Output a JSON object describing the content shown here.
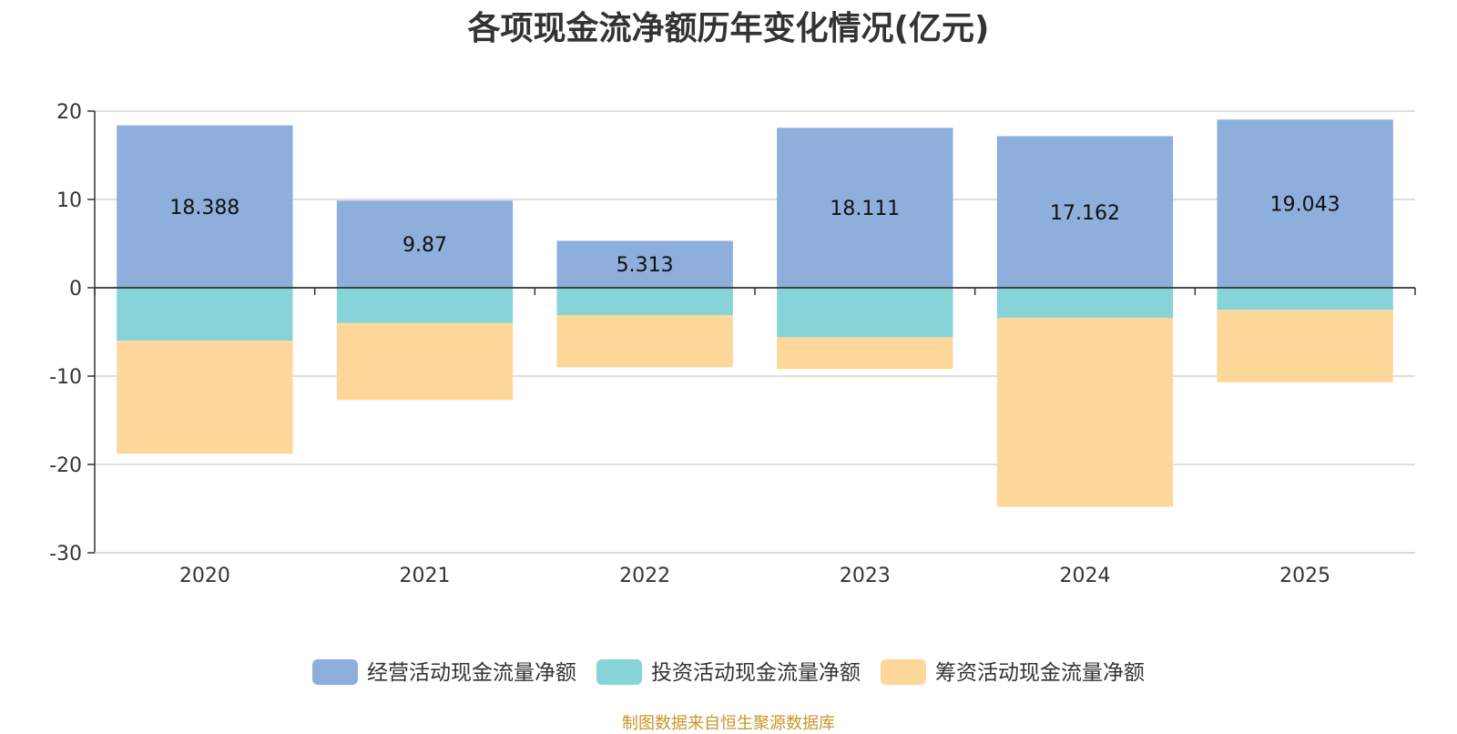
{
  "chart_data": {
    "type": "bar",
    "stacked": true,
    "title": "各项现金流净额历年变化情况(亿元)",
    "categories": [
      "2020",
      "2021",
      "2022",
      "2023",
      "2024",
      "2025"
    ],
    "ylim": [
      -30,
      20
    ],
    "yticks": [
      20,
      10,
      0,
      -10,
      -20,
      -30
    ],
    "grid": true,
    "legend_position": "bottom",
    "series": [
      {
        "name": "经营活动现金流量净额",
        "color": "#8eaedb",
        "values": [
          18.388,
          9.87,
          5.313,
          18.111,
          17.162,
          19.043
        ],
        "labels": [
          "18.388",
          "9.87",
          "5.313",
          "18.111",
          "17.162",
          "19.043"
        ]
      },
      {
        "name": "投资活动现金流量净额",
        "color": "#86d4d8",
        "values": [
          -6.0,
          -4.0,
          -3.1,
          -5.6,
          -3.4,
          -2.5
        ]
      },
      {
        "name": "筹资活动现金流量净额",
        "color": "#fdd89a",
        "values": [
          -12.8,
          -8.7,
          -5.9,
          -3.6,
          -21.4,
          -8.2
        ]
      }
    ]
  },
  "source_note": "制图数据来自恒生聚源数据库"
}
